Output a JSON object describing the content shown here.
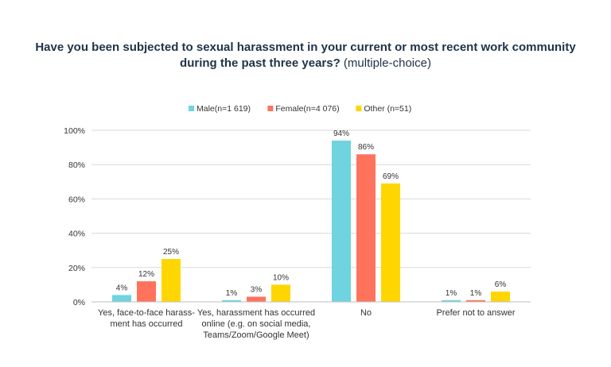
{
  "chart_data": {
    "type": "bar",
    "title_bold": "Have you been subjected to sexual harassment in your current or most recent work community during the past three years?",
    "title_normal": "(multiple-choice)",
    "categories": [
      [
        "Yes, face-to-face harass-",
        "ment has occurred"
      ],
      [
        "Yes, harassment has occurred",
        "online (e.g. on social media,",
        "Teams/Zoom/Google Meet)"
      ],
      [
        "No"
      ],
      [
        "Prefer not to answer"
      ]
    ],
    "series": [
      {
        "name": "Male(n=1 619)",
        "color": "#6fd3e0",
        "values": [
          4,
          1,
          94,
          1
        ]
      },
      {
        "name": "Female(n=4 076)",
        "color": "#ff735c",
        "values": [
          12,
          3,
          86,
          1
        ]
      },
      {
        "name": "Other (n=51)",
        "color": "#ffd600",
        "values": [
          25,
          10,
          69,
          6
        ]
      }
    ],
    "ylim": [
      0,
      100
    ],
    "yticks": [
      0,
      20,
      40,
      60,
      80,
      100
    ],
    "ytick_labels": [
      "0%",
      "20%",
      "40%",
      "60%",
      "80%",
      "100%"
    ],
    "value_suffix": "%",
    "grid": true,
    "legend_position": "top-center",
    "gridline_color": "#d9d9d9"
  }
}
